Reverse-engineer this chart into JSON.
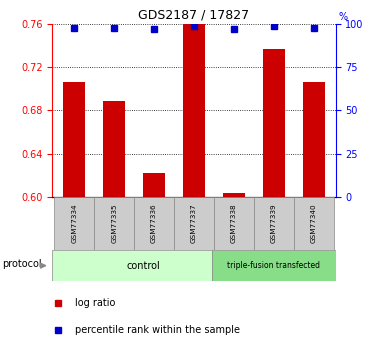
{
  "title": "GDS2187 / 17827",
  "samples": [
    "GSM77334",
    "GSM77335",
    "GSM77336",
    "GSM77337",
    "GSM77338",
    "GSM77339",
    "GSM77340"
  ],
  "log_ratio": [
    0.706,
    0.689,
    0.622,
    0.76,
    0.603,
    0.737,
    0.706
  ],
  "percentile_rank": [
    98,
    98,
    97,
    99,
    97,
    99,
    98
  ],
  "ylim_left": [
    0.6,
    0.76
  ],
  "ylim_right": [
    0,
    100
  ],
  "yticks_left": [
    0.6,
    0.64,
    0.68,
    0.72,
    0.76
  ],
  "yticks_right": [
    0,
    25,
    50,
    75,
    100
  ],
  "bar_color": "#cc0000",
  "dot_color": "#0000cc",
  "n_control": 4,
  "n_transfected": 3,
  "control_label": "control",
  "transfected_label": "triple-fusion transfected",
  "protocol_label": "protocol",
  "legend_log_ratio": "log ratio",
  "legend_percentile": "percentile rank within the sample",
  "control_bg": "#ccffcc",
  "transfected_bg": "#88dd88",
  "sample_box_bg": "#cccccc"
}
